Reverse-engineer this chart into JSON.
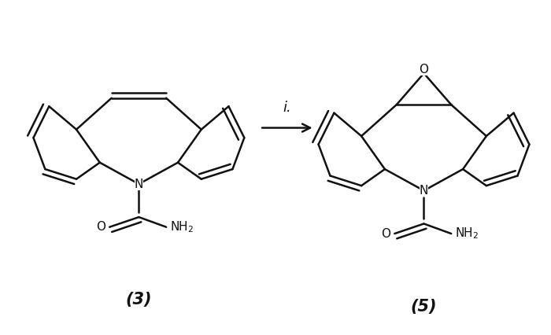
{
  "background_color": "#ffffff",
  "line_color": "#111111",
  "line_width": 1.8,
  "arrow_label": "i.",
  "compound3_label": "(3)",
  "compound5_label": "(5)",
  "label_fontsize": 15,
  "arrow_label_fontsize": 13,
  "fig_width": 7.0,
  "fig_height": 4.26,
  "dpi": 100
}
